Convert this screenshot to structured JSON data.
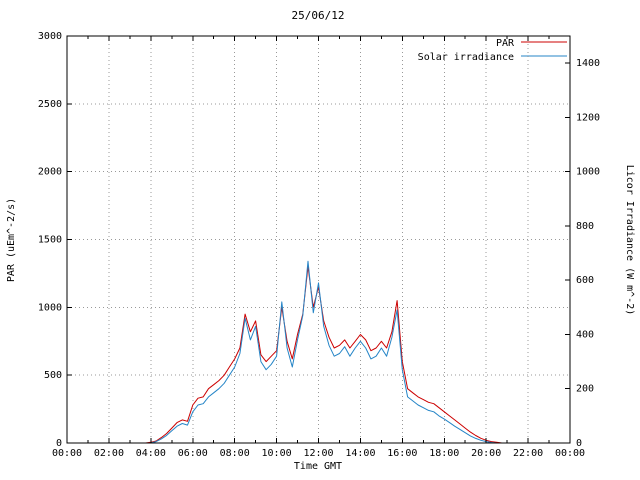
{
  "chart_data": {
    "type": "line",
    "title": "25/06/12",
    "xlabel": "Time GMT",
    "ylabel_left": "PAR (uEm^-2/s)",
    "ylabel_right": "Licor Irradiance (W m^-2)",
    "xlim": [
      0,
      24
    ],
    "ylim_left": [
      0,
      3000
    ],
    "ylim_right": [
      0,
      1500
    ],
    "grid": true,
    "legend_position": "top-right",
    "colors": {
      "par": "#cc0000",
      "solar": "#2585c7",
      "y_tick_labels": "#cc0000",
      "grid": "#999999",
      "border": "#000000"
    },
    "x_ticks": [
      {
        "v": 0,
        "label": "00:00"
      },
      {
        "v": 2,
        "label": "02:00"
      },
      {
        "v": 4,
        "label": "04:00"
      },
      {
        "v": 6,
        "label": "06:00"
      },
      {
        "v": 8,
        "label": "08:00"
      },
      {
        "v": 10,
        "label": "10:00"
      },
      {
        "v": 12,
        "label": "12:00"
      },
      {
        "v": 14,
        "label": "14:00"
      },
      {
        "v": 16,
        "label": "16:00"
      },
      {
        "v": 18,
        "label": "18:00"
      },
      {
        "v": 20,
        "label": "20:00"
      },
      {
        "v": 22,
        "label": "22:00"
      },
      {
        "v": 24,
        "label": "00:00"
      }
    ],
    "x_minor_ticks": [
      1,
      3,
      5,
      7,
      9,
      11,
      13,
      15,
      17,
      19,
      21,
      23
    ],
    "y_left_ticks": [
      0,
      500,
      1000,
      1500,
      2000,
      2500,
      3000
    ],
    "y_right_ticks": [
      0,
      200,
      400,
      600,
      800,
      1000,
      1200,
      1400
    ],
    "x_hours": [
      0,
      3.75,
      4,
      4.25,
      4.5,
      4.75,
      5,
      5.25,
      5.5,
      5.75,
      6,
      6.25,
      6.5,
      6.75,
      7,
      7.25,
      7.5,
      7.75,
      8,
      8.25,
      8.5,
      8.75,
      9,
      9.25,
      9.5,
      9.75,
      10,
      10.25,
      10.5,
      10.75,
      11,
      11.25,
      11.5,
      11.75,
      12,
      12.25,
      12.5,
      12.75,
      13,
      13.25,
      13.5,
      13.75,
      14,
      14.25,
      14.5,
      14.75,
      15,
      15.25,
      15.5,
      15.75,
      16,
      16.25,
      16.5,
      16.75,
      17,
      17.25,
      17.5,
      17.75,
      18,
      18.25,
      18.5,
      18.75,
      19,
      19.25,
      19.5,
      19.75,
      20,
      20.25,
      20.5,
      20.75,
      21,
      24
    ],
    "series": [
      {
        "name": "PAR",
        "axis": "left",
        "units": "uEm^-2/s",
        "color": "#cc0000",
        "values": [
          0,
          0,
          5,
          15,
          40,
          70,
          110,
          150,
          170,
          160,
          280,
          330,
          340,
          400,
          430,
          460,
          500,
          560,
          620,
          700,
          950,
          820,
          900,
          650,
          600,
          640,
          680,
          1000,
          750,
          620,
          800,
          950,
          1300,
          1000,
          1150,
          900,
          780,
          700,
          720,
          760,
          700,
          750,
          800,
          760,
          680,
          700,
          750,
          700,
          820,
          1050,
          600,
          400,
          370,
          340,
          320,
          300,
          290,
          260,
          230,
          200,
          170,
          140,
          110,
          80,
          55,
          35,
          20,
          10,
          5,
          0,
          0,
          0
        ]
      },
      {
        "name": "Solar irradiance",
        "axis": "right",
        "units": "W m^-2",
        "color": "#2585c7",
        "values": [
          0,
          0,
          0,
          5,
          15,
          28,
          45,
          62,
          72,
          66,
          115,
          140,
          145,
          170,
          185,
          200,
          220,
          250,
          280,
          330,
          460,
          380,
          430,
          300,
          270,
          290,
          320,
          520,
          350,
          280,
          380,
          470,
          670,
          480,
          590,
          430,
          360,
          320,
          330,
          355,
          320,
          350,
          375,
          350,
          310,
          320,
          350,
          320,
          390,
          490,
          270,
          170,
          155,
          140,
          130,
          120,
          115,
          100,
          88,
          75,
          62,
          50,
          38,
          26,
          17,
          10,
          5,
          2,
          0,
          0,
          0,
          0
        ]
      }
    ]
  }
}
